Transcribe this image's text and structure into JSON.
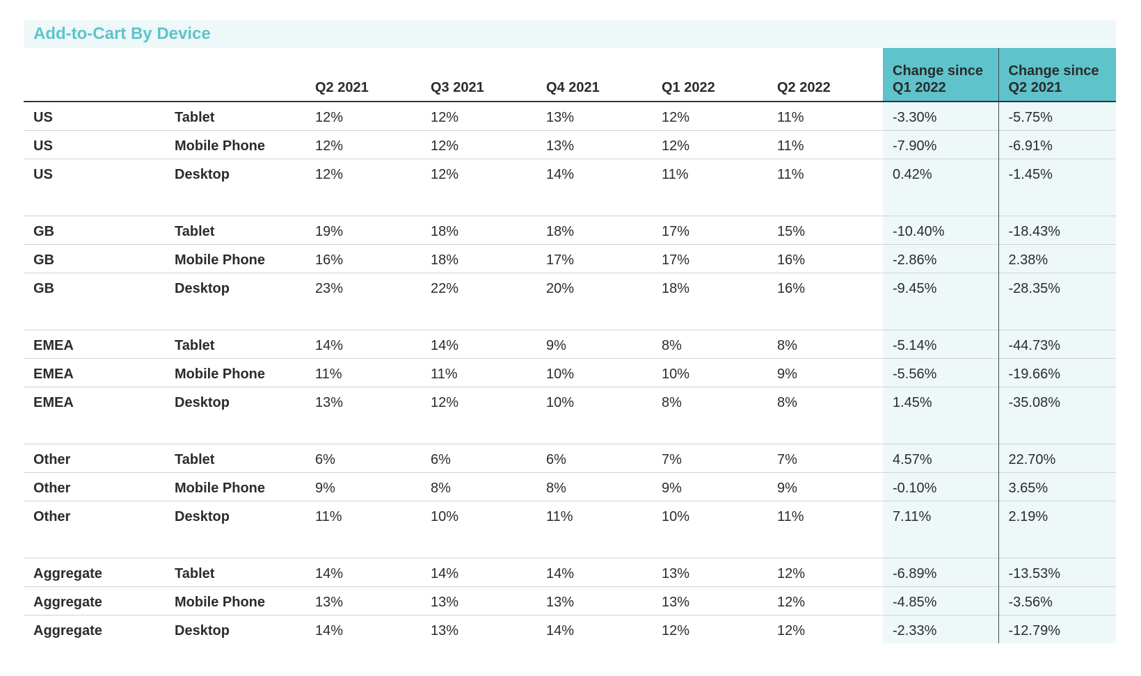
{
  "chart_data": {
    "type": "table",
    "title": "Add-to-Cart By Device",
    "columns": [
      "",
      "",
      "Q2 2021",
      "Q3 2021",
      "Q4 2021",
      "Q1 2022",
      "Q2 2022",
      "Change since Q1 2022",
      "Change since Q2 2021"
    ],
    "groups": [
      {
        "region": "US",
        "rows": [
          {
            "region": "US",
            "device": "Tablet",
            "values": [
              "12%",
              "12%",
              "13%",
              "12%",
              "11%"
            ],
            "change_q1_2022": "-3.30%",
            "change_q2_2021": "-5.75%"
          },
          {
            "region": "US",
            "device": "Mobile Phone",
            "values": [
              "12%",
              "12%",
              "13%",
              "12%",
              "11%"
            ],
            "change_q1_2022": "-7.90%",
            "change_q2_2021": "-6.91%"
          },
          {
            "region": "US",
            "device": "Desktop",
            "values": [
              "12%",
              "12%",
              "14%",
              "11%",
              "11%"
            ],
            "change_q1_2022": "0.42%",
            "change_q2_2021": "-1.45%"
          }
        ]
      },
      {
        "region": "GB",
        "rows": [
          {
            "region": "GB",
            "device": "Tablet",
            "values": [
              "19%",
              "18%",
              "18%",
              "17%",
              "15%"
            ],
            "change_q1_2022": "-10.40%",
            "change_q2_2021": "-18.43%"
          },
          {
            "region": "GB",
            "device": "Mobile Phone",
            "values": [
              "16%",
              "18%",
              "17%",
              "17%",
              "16%"
            ],
            "change_q1_2022": "-2.86%",
            "change_q2_2021": "2.38%"
          },
          {
            "region": "GB",
            "device": "Desktop",
            "values": [
              "23%",
              "22%",
              "20%",
              "18%",
              "16%"
            ],
            "change_q1_2022": "-9.45%",
            "change_q2_2021": "-28.35%"
          }
        ]
      },
      {
        "region": "EMEA",
        "rows": [
          {
            "region": "EMEA",
            "device": "Tablet",
            "values": [
              "14%",
              "14%",
              "9%",
              "8%",
              "8%"
            ],
            "change_q1_2022": "-5.14%",
            "change_q2_2021": "-44.73%"
          },
          {
            "region": "EMEA",
            "device": "Mobile Phone",
            "values": [
              "11%",
              "11%",
              "10%",
              "10%",
              "9%"
            ],
            "change_q1_2022": "-5.56%",
            "change_q2_2021": "-19.66%"
          },
          {
            "region": "EMEA",
            "device": "Desktop",
            "values": [
              "13%",
              "12%",
              "10%",
              "8%",
              "8%"
            ],
            "change_q1_2022": "1.45%",
            "change_q2_2021": "-35.08%"
          }
        ]
      },
      {
        "region": "Other",
        "rows": [
          {
            "region": "Other",
            "device": "Tablet",
            "values": [
              "6%",
              "6%",
              "6%",
              "7%",
              "7%"
            ],
            "change_q1_2022": "4.57%",
            "change_q2_2021": "22.70%"
          },
          {
            "region": "Other",
            "device": "Mobile Phone",
            "values": [
              "9%",
              "8%",
              "8%",
              "9%",
              "9%"
            ],
            "change_q1_2022": "-0.10%",
            "change_q2_2021": "3.65%"
          },
          {
            "region": "Other",
            "device": "Desktop",
            "values": [
              "11%",
              "10%",
              "11%",
              "10%",
              "11%"
            ],
            "change_q1_2022": "7.11%",
            "change_q2_2021": "2.19%"
          }
        ]
      },
      {
        "region": "Aggregate",
        "rows": [
          {
            "region": "Aggregate",
            "device": "Tablet",
            "values": [
              "14%",
              "14%",
              "14%",
              "13%",
              "12%"
            ],
            "change_q1_2022": "-6.89%",
            "change_q2_2021": "-13.53%"
          },
          {
            "region": "Aggregate",
            "device": "Mobile Phone",
            "values": [
              "13%",
              "13%",
              "13%",
              "13%",
              "12%"
            ],
            "change_q1_2022": "-4.85%",
            "change_q2_2021": "-3.56%"
          },
          {
            "region": "Aggregate",
            "device": "Desktop",
            "values": [
              "14%",
              "13%",
              "14%",
              "12%",
              "12%"
            ],
            "change_q1_2022": "-2.33%",
            "change_q2_2021": "-12.79%"
          }
        ]
      }
    ]
  },
  "colors": {
    "title": "#5ec3cb",
    "title_bg": "#eef8f8",
    "highlight_header": "#5ec3cb",
    "highlight_cell": "#eef8f8",
    "rule": "#d2d2d2",
    "divider": "#3e4a52"
  }
}
